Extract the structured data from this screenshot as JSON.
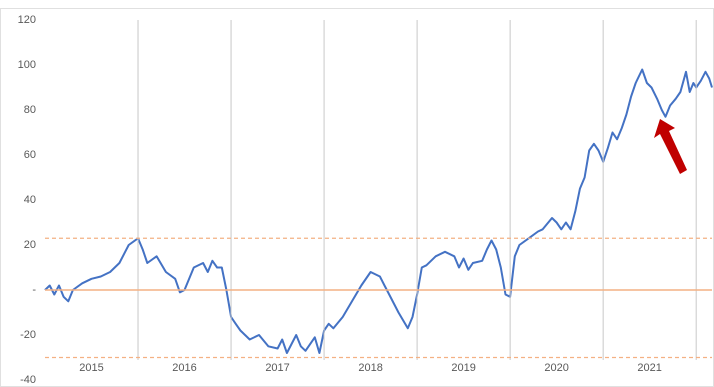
{
  "chart_data": {
    "type": "line",
    "color": "#4472c4",
    "x": [
      2015,
      2015.05,
      2015.1,
      2015.15,
      2015.2,
      2015.25,
      2015.3,
      2015.4,
      2015.5,
      2015.6,
      2015.7,
      2015.8,
      2015.9,
      2016.0,
      2016.05,
      2016.1,
      2016.2,
      2016.3,
      2016.4,
      2016.45,
      2016.5,
      2016.6,
      2016.7,
      2016.75,
      2016.8,
      2016.85,
      2016.9,
      2016.95,
      2017.0,
      2017.05,
      2017.1,
      2017.2,
      2017.3,
      2017.4,
      2017.5,
      2017.55,
      2017.6,
      2017.7,
      2017.75,
      2017.8,
      2017.9,
      2017.95,
      2018.0,
      2018.05,
      2018.1,
      2018.2,
      2018.3,
      2018.4,
      2018.5,
      2018.6,
      2018.65,
      2018.7,
      2018.8,
      2018.9,
      2018.95,
      2019.0,
      2019.05,
      2019.1,
      2019.2,
      2019.3,
      2019.4,
      2019.45,
      2019.5,
      2019.55,
      2019.6,
      2019.7,
      2019.75,
      2019.8,
      2019.85,
      2019.9,
      2019.95,
      2020.0,
      2020.05,
      2020.1,
      2020.2,
      2020.3,
      2020.35,
      2020.45,
      2020.5,
      2020.55,
      2020.6,
      2020.65,
      2020.7,
      2020.75,
      2020.8,
      2020.85,
      2020.9,
      2020.95,
      2021.0,
      2021.05,
      2021.1,
      2021.15,
      2021.2,
      2021.25,
      2021.3,
      2021.35,
      2021.42,
      2021.47,
      2021.52,
      2021.58,
      2021.63,
      2021.67,
      2021.72,
      2021.78,
      2021.83,
      2021.89,
      2021.93,
      2021.97,
      2022.0,
      2022.05,
      2022.1,
      2022.14,
      2022.17
    ],
    "values": [
      0,
      2,
      -2,
      2,
      -3,
      -5,
      0,
      3,
      5,
      6,
      8,
      12,
      20,
      23,
      18,
      12,
      15,
      8,
      5,
      -1,
      0,
      10,
      12,
      8,
      13,
      10,
      10,
      0,
      -12,
      -15,
      -18,
      -22,
      -20,
      -25,
      -26,
      -22,
      -28,
      -20,
      -25,
      -27,
      -21,
      -28,
      -18,
      -15,
      -17,
      -12,
      -5,
      2,
      8,
      6,
      2,
      -2,
      -10,
      -17,
      -12,
      -2,
      10,
      11,
      15,
      17,
      15,
      10,
      14,
      9,
      12,
      13,
      18,
      22,
      18,
      10,
      -2,
      -3,
      15,
      20,
      23,
      26,
      27,
      32,
      30,
      27,
      30,
      27,
      35,
      45,
      50,
      62,
      65,
      62,
      57,
      63,
      70,
      67,
      72,
      78,
      86,
      92,
      98,
      92,
      90,
      85,
      80,
      77,
      82,
      85,
      88,
      97,
      88,
      92,
      90,
      93,
      97,
      94,
      90
    ],
    "xlim": [
      2015,
      2022.17
    ],
    "xticks": [
      {
        "value": 2015.5,
        "label": "2015"
      },
      {
        "value": 2016.5,
        "label": "2016"
      },
      {
        "value": 2017.5,
        "label": "2017"
      },
      {
        "value": 2018.5,
        "label": "2018"
      },
      {
        "value": 2019.5,
        "label": "2019"
      },
      {
        "value": 2020.5,
        "label": "2020"
      },
      {
        "value": 2021.5,
        "label": "2021"
      }
    ],
    "vlines": [
      2016,
      2017,
      2018,
      2019,
      2020,
      2021,
      2022
    ],
    "ylim": [
      -40,
      120
    ],
    "yticks": [
      120,
      100,
      80,
      60,
      40,
      20,
      {
        "value": 0,
        "label": "-"
      },
      -20,
      -40
    ],
    "hlines": [
      {
        "value": 23,
        "style": "dashed",
        "color": "#f4b183"
      },
      {
        "value": 0,
        "style": "solid",
        "color": "#f4b183"
      },
      {
        "value": -30,
        "style": "dashed",
        "color": "#f4b183"
      }
    ]
  }
}
